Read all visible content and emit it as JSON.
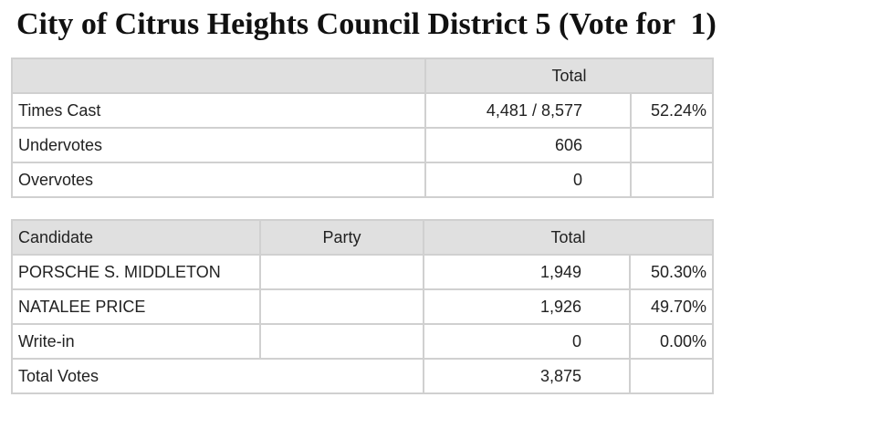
{
  "title": "City of Citrus Heights Council District 5 (Vote for  1)",
  "summary": {
    "header_total": "Total",
    "rows": [
      [
        "Times Cast",
        "4,481 / 8,577",
        "52.24%"
      ],
      [
        "Undervotes",
        "606"
      ],
      [
        "Overvotes",
        "0"
      ]
    ]
  },
  "results": {
    "header": [
      "Candidate",
      "Party",
      "Total"
    ],
    "rows": [
      [
        "PORSCHE S. MIDDLETON",
        "1,949",
        "50.30%"
      ],
      [
        "NATALEE PRICE",
        "1,926",
        "49.70%"
      ],
      [
        "Write-in",
        "0",
        "0.00%"
      ]
    ],
    "total_votes": [
      "Total Votes",
      "3,875"
    ]
  }
}
